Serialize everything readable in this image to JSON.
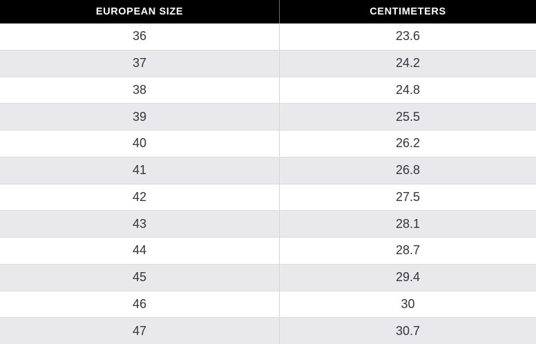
{
  "table": {
    "title": "shoe-size-conversion-table",
    "columns": {
      "size_header": "EUROPEAN SIZE",
      "cm_header": "CENTIMETERS"
    },
    "rows": [
      {
        "size": "36",
        "cm": "23.6"
      },
      {
        "size": "37",
        "cm": "24.2"
      },
      {
        "size": "38",
        "cm": "24.8"
      },
      {
        "size": "39",
        "cm": "25.5"
      },
      {
        "size": "40",
        "cm": "26.2"
      },
      {
        "size": "41",
        "cm": "26.8"
      },
      {
        "size": "42",
        "cm": "27.5"
      },
      {
        "size": "43",
        "cm": "28.1"
      },
      {
        "size": "44",
        "cm": "28.7"
      },
      {
        "size": "45",
        "cm": "29.4"
      },
      {
        "size": "46",
        "cm": "30"
      },
      {
        "size": "47",
        "cm": "30.7"
      }
    ],
    "colors": {
      "header_bg": "#000000",
      "header_text": "#ffffff",
      "row_bg": "#ffffff",
      "row_alt_bg": "#e9e9eb",
      "row_border": "#dcdcde",
      "column_divider_body": "#d4d4d6",
      "column_divider_header": "#6f6f6f",
      "body_text": "#33343a"
    }
  }
}
